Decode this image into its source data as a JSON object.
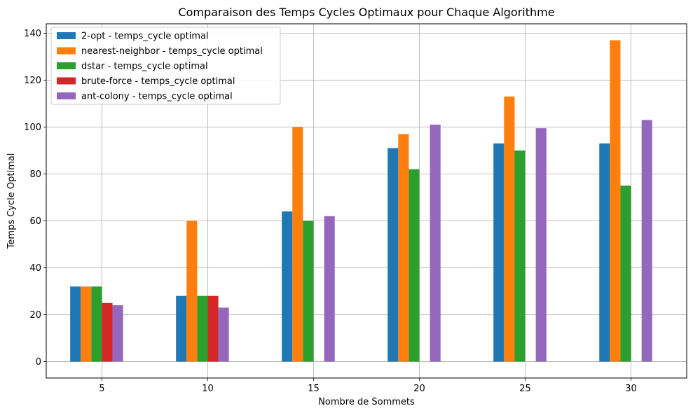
{
  "chart_data": {
    "type": "bar",
    "title": "Comparaison des Temps Cycles Optimaux pour Chaque Algorithme",
    "xlabel": "Nombre de Sommets",
    "ylabel": "Temps Cycle Optimal",
    "categories": [
      "5",
      "10",
      "15",
      "20",
      "25",
      "30"
    ],
    "x_values": [
      5,
      10,
      15,
      20,
      25,
      30
    ],
    "xlim": [
      2.37,
      32.63
    ],
    "ylim": [
      -7,
      144
    ],
    "yticks": [
      0,
      20,
      40,
      60,
      80,
      100,
      120,
      140
    ],
    "grid": true,
    "legend_position": "top-left",
    "series": [
      {
        "name": "2-opt - temps_cycle optimal",
        "color": "#1f77b4",
        "offset": -1.25,
        "values": [
          32,
          28,
          64,
          91,
          93,
          93
        ]
      },
      {
        "name": "nearest-neighbor - temps_cycle optimal",
        "color": "#ff7f0e",
        "offset": -0.75,
        "values": [
          32,
          60,
          100,
          97,
          113,
          137
        ]
      },
      {
        "name": "dstar - temps_cycle optimal",
        "color": "#2ca02c",
        "offset": -0.25,
        "values": [
          32,
          28,
          60,
          82,
          90,
          75
        ]
      },
      {
        "name": "brute-force - temps_cycle optimal",
        "color": "#d62728",
        "offset": 0.25,
        "values": [
          25,
          28,
          null,
          null,
          null,
          null
        ]
      },
      {
        "name": "ant-colony - temps_cycle optimal",
        "color": "#9467bd",
        "offset": 0.75,
        "values": [
          24,
          23,
          62,
          101,
          99.5,
          103
        ]
      }
    ],
    "bar_width": 0.5
  }
}
